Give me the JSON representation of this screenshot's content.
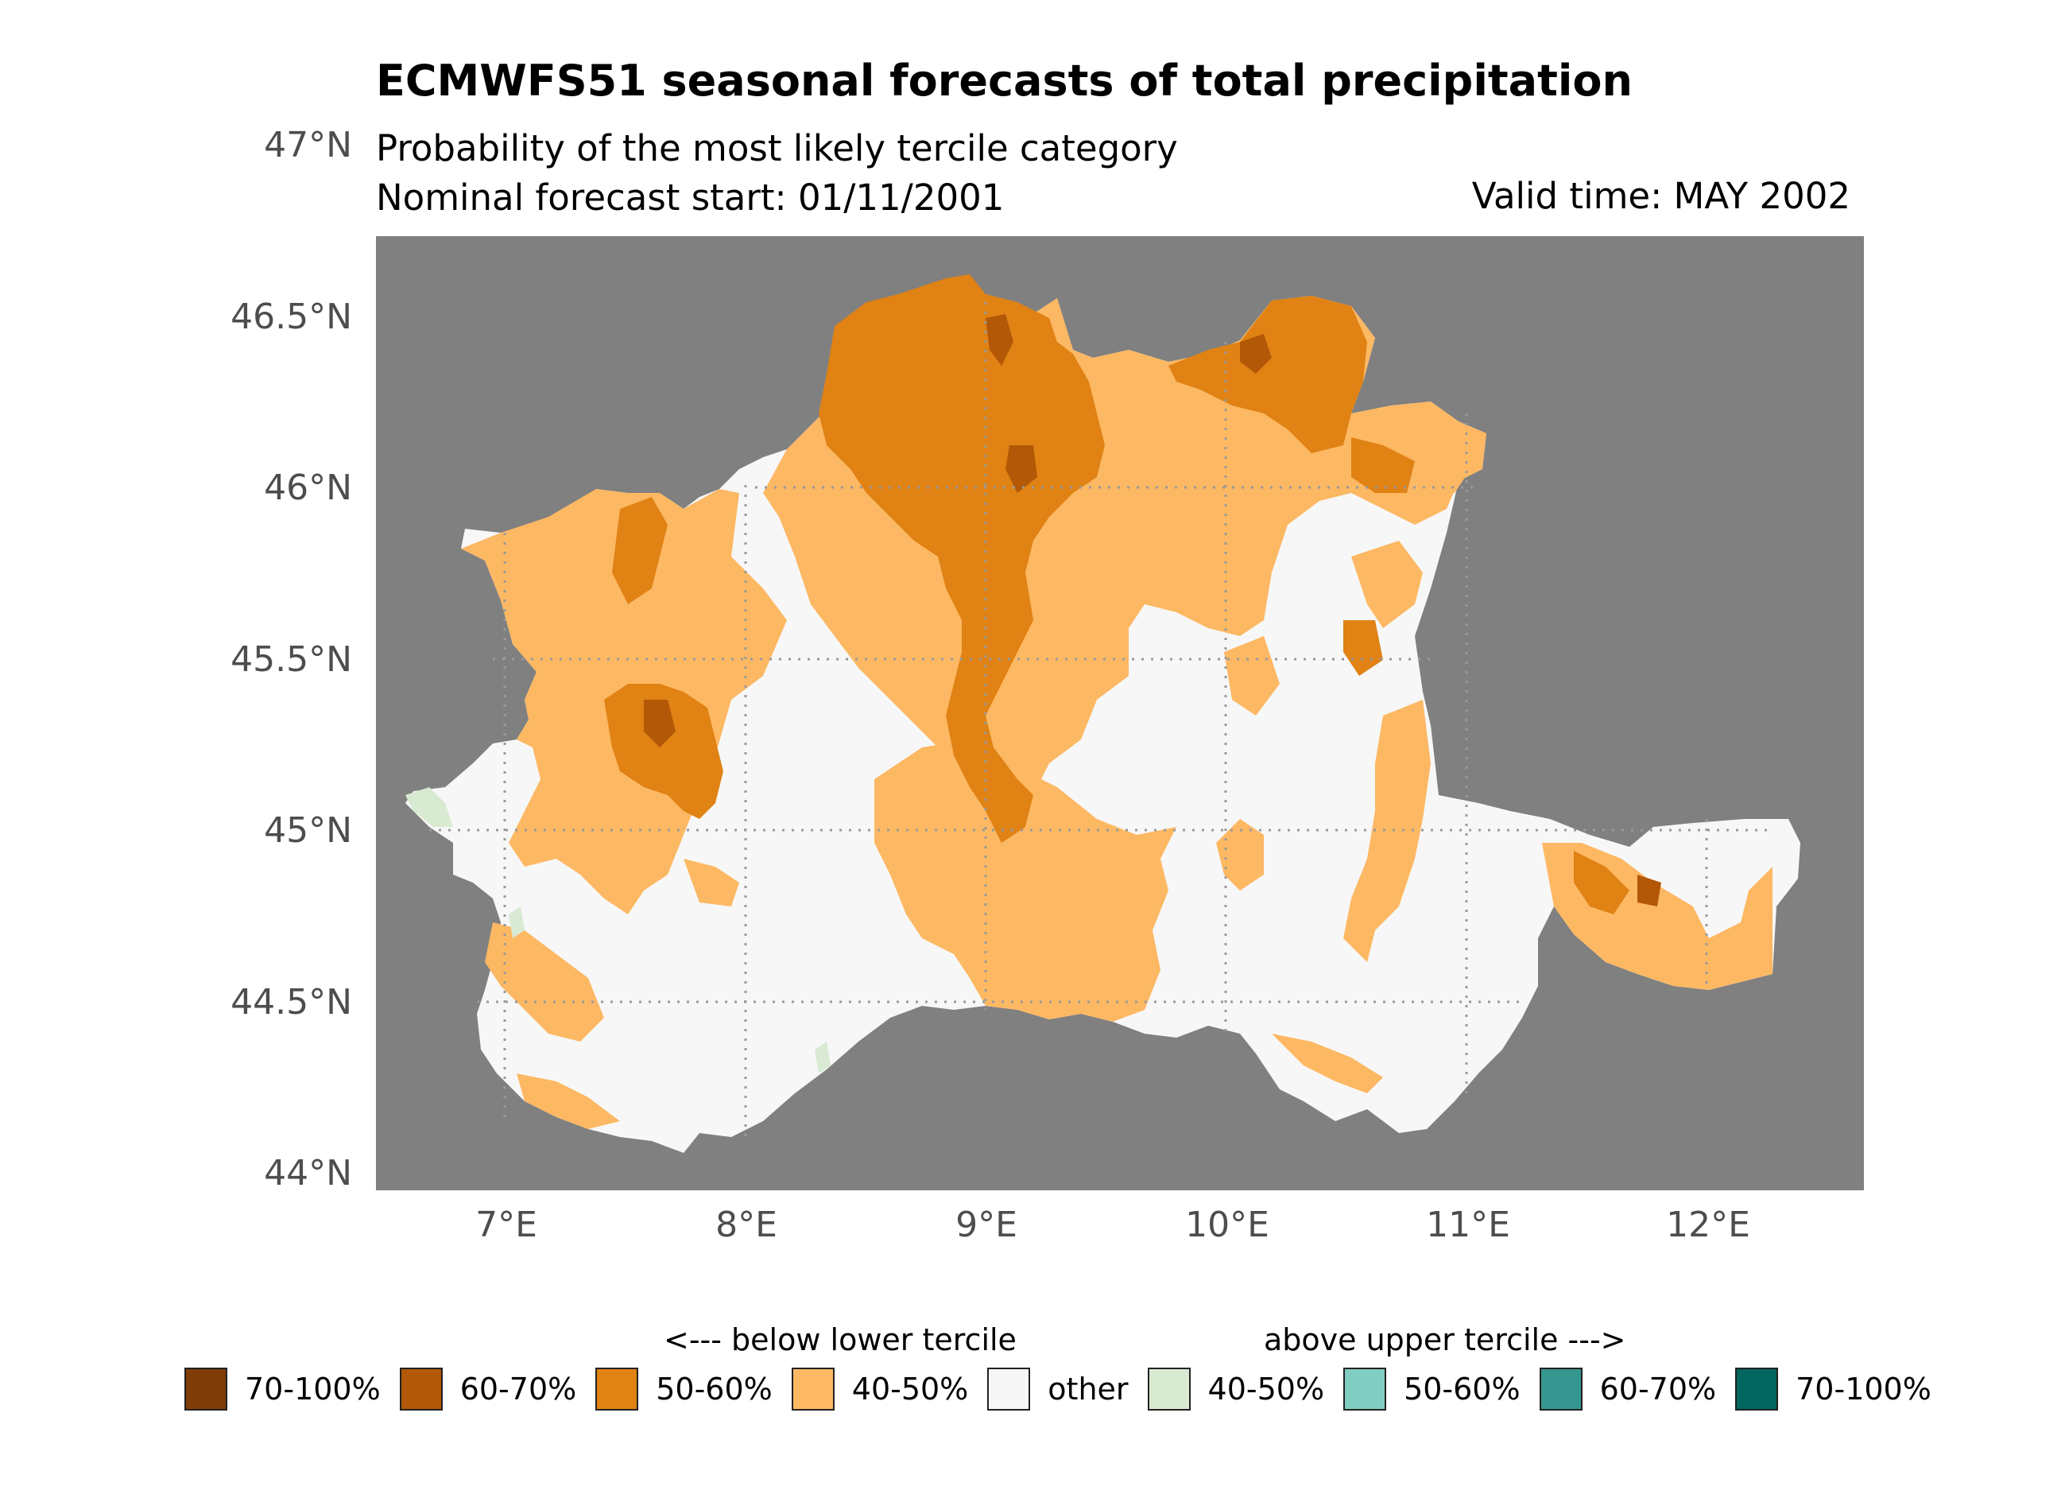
{
  "title": "ECMWFS51 seasonal forecasts of total precipitation",
  "subtitle": "Probability of the most likely tercile category",
  "forecast_start": "Nominal forecast start: 01/11/2001",
  "valid_time": "Valid time: MAY 2002",
  "axes": {
    "lat_labels": [
      "47°N",
      "46.5°N",
      "46°N",
      "45.5°N",
      "45°N",
      "44.5°N",
      "44°N"
    ],
    "lon_labels": [
      "7°E",
      "8°E",
      "9°E",
      "10°E",
      "11°E",
      "12°E"
    ]
  },
  "legend": {
    "below_label": "<--- below lower tercile",
    "above_label": "above upper tercile --->",
    "items": [
      {
        "label": "70-100%",
        "color": "#7f3b08"
      },
      {
        "label": "60-70%",
        "color": "#b35806"
      },
      {
        "label": "50-60%",
        "color": "#e08214"
      },
      {
        "label": "40-50%",
        "color": "#fdb863"
      },
      {
        "label": "other",
        "color": "#f7f7f7"
      },
      {
        "label": "40-50%",
        "color": "#d9ead3"
      },
      {
        "label": "50-60%",
        "color": "#80cdc1"
      },
      {
        "label": "60-70%",
        "color": "#35978f"
      },
      {
        "label": "70-100%",
        "color": "#01665e"
      }
    ]
  },
  "colors": {
    "background": "#808080",
    "grid": "#9a9a9a"
  }
}
